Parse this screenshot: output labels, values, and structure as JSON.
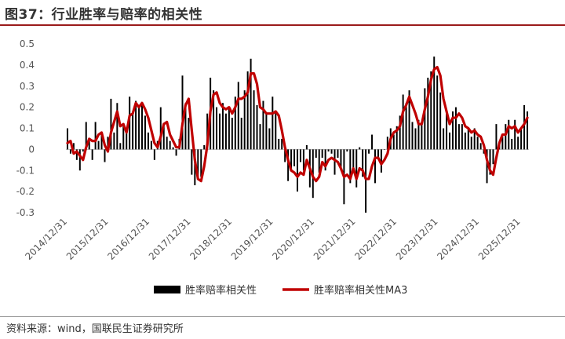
{
  "title": "图37：行业胜率与赔率的相关性",
  "source": "资料来源：wind，国联民生证券研究所",
  "colors": {
    "bar": "#000000",
    "line": "#c00000",
    "accent_rule": "#9a1b1b"
  },
  "chart_data": {
    "type": "bar",
    "title": "图37：行业胜率与赔率的相关性",
    "xlabel": "",
    "ylabel": "",
    "ylim": [
      -0.3,
      0.5
    ],
    "yticks": [
      "0.5",
      "0.4",
      "0.3",
      "0.2",
      "0.1",
      "0",
      "-0.1",
      "-0.2",
      "-0.3"
    ],
    "xtick_labels": [
      "2014/12/31",
      "2015/12/31",
      "2016/12/31",
      "2017/12/31",
      "2018/12/31",
      "2019/12/31",
      "2020/12/31",
      "2021/12/31",
      "2022/12/31",
      "2023/12/31",
      "2024/12/31",
      "2025/12/31"
    ],
    "legend": "bottom-center",
    "grid": false,
    "series": [
      {
        "name": "胜率赔率相关性",
        "type": "bar",
        "values": [
          0.1,
          -0.02,
          0.03,
          -0.05,
          -0.1,
          -0.01,
          0.13,
          0.04,
          -0.05,
          0.13,
          0.04,
          0.08,
          -0.06,
          0.06,
          0.24,
          0.08,
          0.22,
          0.03,
          0.12,
          0.1,
          0.25,
          0.17,
          0.23,
          0.2,
          0.22,
          0.16,
          0.08,
          0.04,
          -0.05,
          0.04,
          0.2,
          0.12,
          0.06,
          0.04,
          0.01,
          -0.03,
          0.05,
          0.35,
          0.22,
          0.15,
          -0.12,
          -0.17,
          -0.14,
          -0.13,
          0.02,
          0.17,
          0.34,
          0.28,
          0.2,
          0.17,
          0.22,
          0.17,
          0.2,
          0.15,
          0.25,
          0.32,
          0.15,
          0.28,
          0.37,
          0.43,
          0.28,
          0.21,
          0.12,
          0.23,
          0.17,
          0.1,
          0.25,
          0.18,
          0.05,
          0.05,
          -0.06,
          -0.15,
          -0.1,
          -0.08,
          -0.2,
          -0.06,
          -0.1,
          0.02,
          -0.18,
          -0.23,
          -0.04,
          -0.11,
          -0.04,
          -0.1,
          -0.01,
          -0.02,
          -0.12,
          -0.04,
          -0.1,
          -0.26,
          -0.01,
          -0.16,
          -0.09,
          -0.18,
          0.01,
          -0.13,
          -0.3,
          -0.02,
          0.07,
          -0.16,
          -0.04,
          -0.11,
          0.0,
          0.06,
          0.1,
          0.07,
          0.11,
          0.16,
          0.26,
          0.22,
          0.28,
          0.13,
          0.1,
          0.14,
          0.13,
          0.29,
          0.34,
          0.37,
          0.44,
          0.35,
          0.27,
          0.1,
          0.18,
          0.08,
          0.18,
          0.2,
          0.12,
          0.12,
          0.08,
          0.1,
          0.06,
          0.1,
          0.06,
          0.03,
          -0.02,
          -0.16,
          -0.12,
          -0.07,
          0.12,
          0.04,
          0.06,
          0.12,
          0.14,
          0.05,
          0.14,
          0.06,
          0.1,
          0.21,
          0.18
        ]
      },
      {
        "name": "胜率赔率相关性MA3",
        "type": "line",
        "values": [
          0.03,
          0.04,
          -0.02,
          -0.01,
          -0.03,
          -0.05,
          0.01,
          0.05,
          0.04,
          0.04,
          0.07,
          0.08,
          0.02,
          -0.01,
          0.08,
          0.13,
          0.18,
          0.11,
          0.12,
          0.08,
          0.16,
          0.17,
          0.22,
          0.2,
          0.22,
          0.19,
          0.15,
          0.09,
          0.03,
          0.01,
          0.06,
          0.12,
          0.13,
          0.07,
          0.04,
          0.01,
          0.01,
          0.12,
          0.21,
          0.24,
          0.09,
          -0.05,
          -0.14,
          -0.15,
          -0.08,
          0.02,
          0.18,
          0.26,
          0.27,
          0.22,
          0.2,
          0.19,
          0.2,
          0.17,
          0.2,
          0.24,
          0.24,
          0.25,
          0.27,
          0.36,
          0.36,
          0.31,
          0.2,
          0.19,
          0.17,
          0.17,
          0.17,
          0.18,
          0.16,
          0.09,
          0.01,
          -0.05,
          -0.1,
          -0.11,
          -0.13,
          -0.11,
          -0.12,
          -0.05,
          -0.09,
          -0.13,
          -0.15,
          -0.13,
          -0.06,
          -0.08,
          -0.05,
          -0.04,
          -0.05,
          -0.06,
          -0.09,
          -0.13,
          -0.12,
          -0.14,
          -0.09,
          -0.14,
          -0.09,
          -0.1,
          -0.14,
          -0.14,
          -0.08,
          -0.04,
          -0.04,
          -0.07,
          -0.05,
          -0.02,
          0.05,
          0.08,
          0.09,
          0.11,
          0.18,
          0.21,
          0.25,
          0.21,
          0.17,
          0.12,
          0.12,
          0.19,
          0.25,
          0.33,
          0.38,
          0.39,
          0.35,
          0.24,
          0.18,
          0.12,
          0.15,
          0.15,
          0.17,
          0.15,
          0.11,
          0.1,
          0.08,
          0.09,
          0.07,
          0.06,
          0.02,
          -0.05,
          -0.1,
          -0.12,
          -0.04,
          0.03,
          0.07,
          0.07,
          0.11,
          0.1,
          0.11,
          0.08,
          0.1,
          0.12,
          0.15
        ]
      }
    ]
  }
}
